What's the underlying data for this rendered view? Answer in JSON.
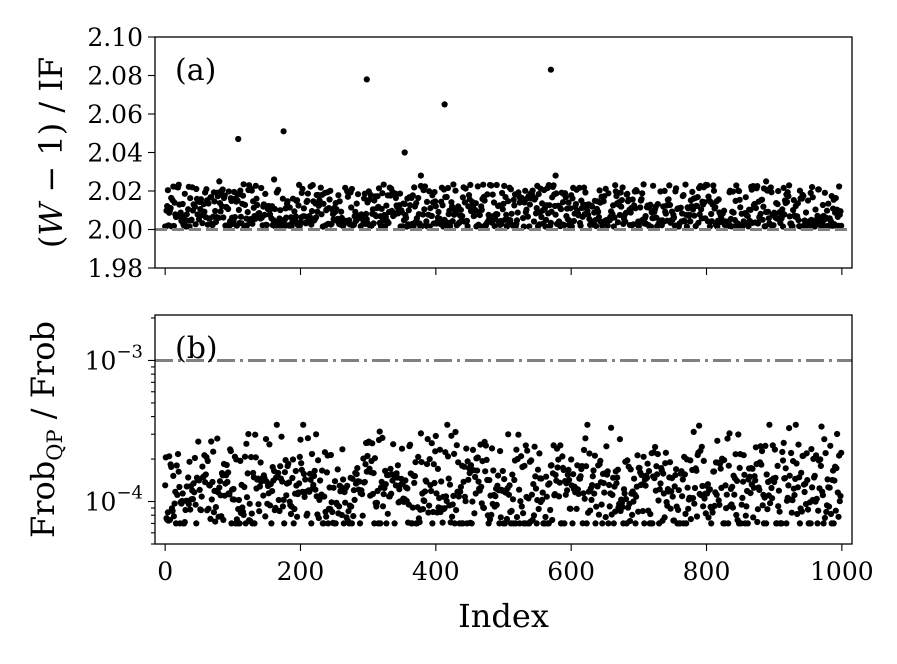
{
  "chart_data": [
    {
      "type": "scatter",
      "panel_label": "(a)",
      "ylabel": "(W − 1) / IF",
      "ylim": [
        1.98,
        2.1
      ],
      "yticks": [
        "1.98",
        "2.00",
        "2.02",
        "2.04",
        "2.06",
        "2.08",
        "2.10"
      ],
      "yscale": "linear",
      "xlim": [
        -15,
        1015
      ],
      "reference_line": {
        "y": 2.0,
        "style": "dashed",
        "color": "#808080"
      },
      "point_color": "#000000",
      "n_points": 1000,
      "highlighted_points": [
        {
          "x": 108,
          "y": 2.047
        },
        {
          "x": 175,
          "y": 2.051
        },
        {
          "x": 298,
          "y": 2.078
        },
        {
          "x": 354,
          "y": 2.04
        },
        {
          "x": 413,
          "y": 2.065
        },
        {
          "x": 570,
          "y": 2.083
        },
        {
          "x": 161,
          "y": 2.026
        },
        {
          "x": 378,
          "y": 2.028
        },
        {
          "x": 577,
          "y": 2.028
        },
        {
          "x": 888,
          "y": 2.025
        },
        {
          "x": 80,
          "y": 2.025
        }
      ],
      "bulk_y_range": [
        2.0,
        2.025
      ]
    },
    {
      "type": "scatter",
      "panel_label": "(b)",
      "ylabel": "Frob",
      "ylabel_subscript": "QP",
      "ylabel_suffix": " / Frob",
      "ylim": [
        5e-05,
        0.0021
      ],
      "yscale": "log",
      "yticks": [
        {
          "value": 0.0001,
          "base": "10",
          "exp": "−4"
        },
        {
          "value": 0.001,
          "base": "10",
          "exp": "−3"
        }
      ],
      "xlim": [
        -15,
        1015
      ],
      "xlabel": "Index",
      "xticks": [
        "0",
        "200",
        "400",
        "600",
        "800",
        "1000"
      ],
      "reference_line": {
        "y": 0.001,
        "style": "dashdot",
        "color": "#808080"
      },
      "point_color": "#000000",
      "n_points": 1000,
      "bulk_y_range": [
        7e-05,
        0.00035
      ]
    }
  ]
}
